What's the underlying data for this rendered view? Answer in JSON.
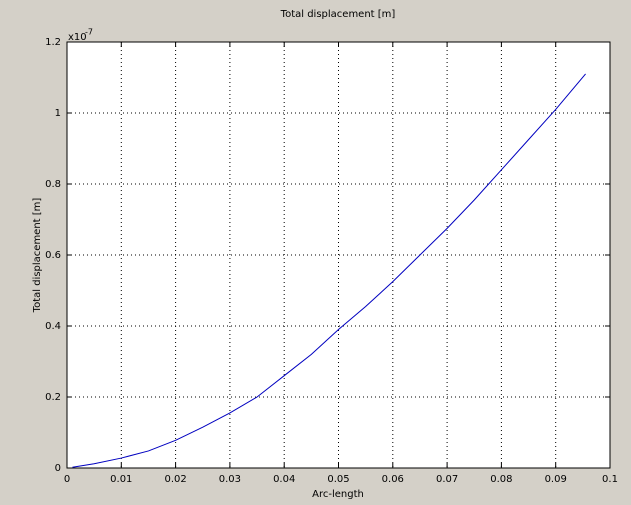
{
  "chart_data": {
    "type": "line",
    "title": "Total displacement [m]",
    "x_label": "Arc-length",
    "y_label": "Total displacement [m]",
    "y_multiplier": {
      "base": "x10",
      "exponent": "-7"
    },
    "x": [
      0.001,
      0.005,
      0.01,
      0.015,
      0.02,
      0.025,
      0.03,
      0.035,
      0.04,
      0.045,
      0.05,
      0.055,
      0.06,
      0.065,
      0.07,
      0.075,
      0.08,
      0.085,
      0.09,
      0.0955
    ],
    "series": [
      {
        "color": "#0000c0",
        "values": [
          0.002,
          0.012,
          0.028,
          0.048,
          0.078,
          0.115,
          0.155,
          0.2,
          0.26,
          0.32,
          0.39,
          0.455,
          0.525,
          0.6,
          0.675,
          0.755,
          0.84,
          0.925,
          1.01,
          1.11
        ]
      }
    ],
    "xlim": [
      0,
      0.1
    ],
    "xticks": [
      0,
      0.01,
      0.02,
      0.03,
      0.04,
      0.05,
      0.06,
      0.07,
      0.08,
      0.09,
      0.1
    ],
    "ylim": [
      0,
      1.2
    ],
    "yticks": [
      0,
      0.2,
      0.4,
      0.6,
      0.8,
      1,
      1.2
    ],
    "grid": true
  }
}
